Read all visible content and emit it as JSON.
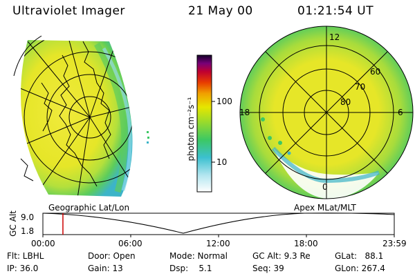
{
  "header": {
    "instrument": "Ultraviolet Imager",
    "date": "21 May 00",
    "time": "01:21:54 UT"
  },
  "colorbar": {
    "unit_label": "photon cm⁻²s⁻¹",
    "ticks": [
      "100",
      "10"
    ]
  },
  "left_map": {
    "title": "Geographic Lat/Lon"
  },
  "right_map": {
    "title": "Apex MLat/MLT",
    "mlt_labels": [
      "12",
      "18",
      "6",
      "0"
    ],
    "mlat_labels": [
      "60",
      "70",
      "80"
    ]
  },
  "timeline": {
    "axis_label": "GC Alt",
    "y_ticks": [
      "9.0",
      "1.8"
    ],
    "x_ticks": [
      "00:00",
      "06:00",
      "12:00",
      "18:00",
      "23:59"
    ],
    "current_time_fraction": 0.057
  },
  "footer": {
    "flt": "Flt: LBHL",
    "ip": "IP: 36.0",
    "door": "Door: Open",
    "gain": "Gain: 13",
    "mode": "Mode: Normal",
    "dsp": "Dsp:    5.1",
    "gc_alt": "GC Alt: 9.3 Re",
    "seq": "Seq: 39",
    "glat": "GLat:   88.1",
    "glon": "GLon: 267.4"
  },
  "colors": {
    "bright": "#f08c00",
    "mid": "#e6e600",
    "dim": "#3cb4c8",
    "marker": "#cc0000"
  }
}
